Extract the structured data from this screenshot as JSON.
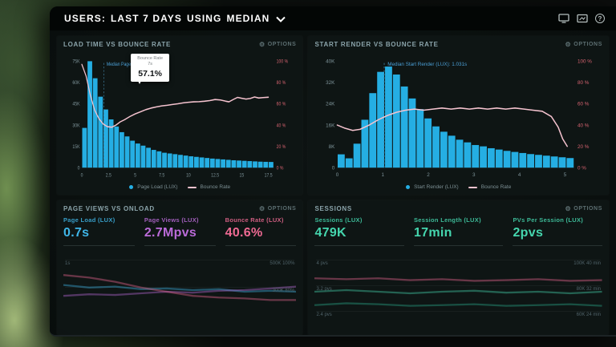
{
  "topbar": {
    "title": {
      "prefix": "USERS:",
      "range": "LAST 7 DAYS",
      "using": "USING",
      "metric": "MEDIAN"
    }
  },
  "labels": {
    "options": "OPTIONS"
  },
  "colors": {
    "bar_blue": "#25aee3",
    "line_pink": "#f5c3cf",
    "tick_left": "#7e949a",
    "tick_right": "#d4626f",
    "median_blue": "#4b9fd6",
    "teal": "#45d6ae",
    "purple": "#bb6bd9",
    "pink": "#ef6a93",
    "blue": "#3fb6e8"
  },
  "chart_data": [
    {
      "id": "load-time-vs-bounce-rate",
      "type": "bar",
      "title": "LOAD TIME VS BOUNCE RATE",
      "bar_series": "Page Load (LUX)",
      "line_series": "Bounce Rate",
      "bar_color": "#25aee3",
      "line_color": "#f5c3cf",
      "x_max": 18,
      "bin_width_s": 0.5,
      "y_left_max_k": 75,
      "bar_values_k": [
        28,
        75,
        63,
        50,
        41,
        34,
        29,
        25,
        22,
        19,
        17,
        15.5,
        14,
        12.5,
        11.5,
        10.5,
        10,
        9.5,
        9,
        8.5,
        8,
        7.6,
        7.2,
        6.8,
        6.4,
        6.1,
        5.8,
        5.5,
        5.2,
        5.0,
        4.8,
        4.6,
        4.4,
        4.2,
        4.1,
        4.0
      ],
      "line_points_pct": [
        [
          0,
          97
        ],
        [
          0.4,
          86
        ],
        [
          0.8,
          68
        ],
        [
          1.2,
          54
        ],
        [
          1.6,
          46
        ],
        [
          2,
          41
        ],
        [
          2.4,
          38.5
        ],
        [
          2.8,
          38
        ],
        [
          3.2,
          40
        ],
        [
          3.6,
          43
        ],
        [
          4,
          45
        ],
        [
          4.5,
          48
        ],
        [
          5,
          50.5
        ],
        [
          5.5,
          52.5
        ],
        [
          6,
          54.5
        ],
        [
          6.5,
          56
        ],
        [
          7,
          57.1
        ],
        [
          7.5,
          58
        ],
        [
          8,
          58.6
        ],
        [
          8.5,
          59.3
        ],
        [
          9,
          60
        ],
        [
          9.5,
          60.8
        ],
        [
          10,
          61.4
        ],
        [
          10.5,
          61.8
        ],
        [
          11,
          62
        ],
        [
          11.5,
          62.4
        ],
        [
          12,
          63
        ],
        [
          12.5,
          64
        ],
        [
          13,
          63.6
        ],
        [
          13.5,
          62.4
        ],
        [
          13.8,
          61.8
        ],
        [
          14.2,
          64
        ],
        [
          14.6,
          66
        ],
        [
          15,
          65.2
        ],
        [
          15.4,
          64.4
        ],
        [
          15.8,
          65
        ],
        [
          16.2,
          66.4
        ],
        [
          16.6,
          65.4
        ],
        [
          17,
          65.8
        ],
        [
          17.5,
          66.2
        ]
      ],
      "y_left_ticks": [
        "75K",
        "60K",
        "45K",
        "30K",
        "15K",
        "0"
      ],
      "y_right_ticks": [
        "100 %",
        "80 %",
        "60 %",
        "40 %",
        "20 %",
        "0 %"
      ],
      "x_ticks": [
        0,
        2.5,
        5,
        7.5,
        10,
        12.5,
        15,
        17.5
      ],
      "median_label": "Median Page Load (LUX): 2.058s",
      "median_x": 2.058,
      "tooltip": {
        "series": "Bounce Rate",
        "x_label": "7s",
        "value": "57.1%"
      },
      "legend": [
        {
          "label": "Page Load (LUX)"
        },
        {
          "label": "Bounce Rate"
        }
      ]
    },
    {
      "id": "start-render-vs-bounce-rate",
      "type": "bar",
      "title": "START RENDER VS BOUNCE RATE",
      "bar_series": "Start Render (LUX)",
      "line_series": "Bounce Rate",
      "bar_color": "#25aee3",
      "line_color": "#f5c3cf",
      "x_max": 5.2,
      "bin_width_s": 0.17,
      "y_left_max_k": 40,
      "bar_values_k": [
        5,
        3.5,
        9,
        18,
        28,
        36,
        38,
        35,
        30.5,
        26,
        22,
        18.5,
        15.5,
        13.5,
        12,
        10.5,
        9.5,
        8.5,
        8,
        7.3,
        6.8,
        6.3,
        5.9,
        5.5,
        5.1,
        4.8,
        4.5,
        4.2,
        3.9,
        3.6
      ],
      "line_points_pct": [
        [
          0,
          40
        ],
        [
          0.17,
          37
        ],
        [
          0.34,
          35
        ],
        [
          0.5,
          36
        ],
        [
          0.7,
          40
        ],
        [
          0.9,
          45
        ],
        [
          1.1,
          49
        ],
        [
          1.3,
          52
        ],
        [
          1.5,
          54
        ],
        [
          1.7,
          55
        ],
        [
          1.9,
          54
        ],
        [
          2.1,
          55
        ],
        [
          2.3,
          56
        ],
        [
          2.5,
          55
        ],
        [
          2.7,
          56
        ],
        [
          2.9,
          55
        ],
        [
          3.1,
          56
        ],
        [
          3.3,
          55
        ],
        [
          3.5,
          56
        ],
        [
          3.7,
          55
        ],
        [
          3.9,
          56
        ],
        [
          4.1,
          55
        ],
        [
          4.3,
          54
        ],
        [
          4.5,
          53
        ],
        [
          4.7,
          48
        ],
        [
          4.85,
          38
        ],
        [
          4.95,
          27
        ],
        [
          5.05,
          20
        ]
      ],
      "y_left_ticks": [
        "40K",
        "32K",
        "24K",
        "16K",
        "8K",
        "0"
      ],
      "y_right_ticks": [
        "100 %",
        "80 %",
        "60 %",
        "40 %",
        "20 %",
        "0 %"
      ],
      "x_ticks": [
        0,
        1,
        2,
        3,
        4,
        5
      ],
      "median_label": "Median Start Render (LUX): 1.031s",
      "median_x": 1.031,
      "legend": [
        {
          "label": "Start Render (LUX)"
        },
        {
          "label": "Bounce Rate"
        }
      ]
    },
    {
      "id": "page-views-vs-onload",
      "type": "table",
      "title": "PAGE VIEWS VS ONLOAD",
      "metrics": [
        {
          "label": "Page Load (LUX)",
          "value": "0.7s",
          "color": "#3fb6e8"
        },
        {
          "label": "Page Views (LUX)",
          "value": "2.7Mpvs",
          "color": "#bb6bd9"
        },
        {
          "label": "Bounce Rate (LUX)",
          "value": "40.6%",
          "color": "#ef6a93"
        }
      ],
      "grid_rows": [
        {
          "left": "1s",
          "right": "500K  100%"
        },
        {
          "left": "",
          "right": "300K  80%"
        }
      ],
      "sparks": [
        {
          "color": "#3fb6e8",
          "values": [
            0.42,
            0.45,
            0.44,
            0.47,
            0.46,
            0.48,
            0.47,
            0.5,
            0.49,
            0.5
          ]
        },
        {
          "color": "#bb6bd9",
          "values": [
            0.55,
            0.53,
            0.54,
            0.52,
            0.5,
            0.51,
            0.49,
            0.48,
            0.46,
            0.44
          ]
        },
        {
          "color": "#ef6a93",
          "values": [
            0.3,
            0.33,
            0.38,
            0.45,
            0.5,
            0.55,
            0.57,
            0.58,
            0.6,
            0.6
          ]
        }
      ]
    },
    {
      "id": "sessions",
      "type": "table",
      "title": "SESSIONS",
      "metrics": [
        {
          "label": "Sessions (LUX)",
          "value": "479K",
          "color": "#45d6ae"
        },
        {
          "label": "Session Length (LUX)",
          "value": "17min",
          "color": "#45d6ae"
        },
        {
          "label": "PVs Per Session (LUX)",
          "value": "2pvs",
          "color": "#45d6ae"
        }
      ],
      "grid_rows": [
        {
          "left": "4 pvs",
          "right": "100K  40 min"
        },
        {
          "left": "3.2 pvs",
          "right": "80K  32 min"
        },
        {
          "left": "2.4 pvs",
          "right": "60K  24 min"
        }
      ],
      "sparks": [
        {
          "color": "#45d6ae",
          "values": [
            0.5,
            0.48,
            0.5,
            0.52,
            0.5,
            0.49,
            0.51,
            0.5,
            0.52,
            0.5
          ]
        },
        {
          "color": "#2aa98a",
          "values": [
            0.66,
            0.64,
            0.65,
            0.67,
            0.66,
            0.65,
            0.67,
            0.66,
            0.65,
            0.67
          ]
        },
        {
          "color": "#ef6a93",
          "values": [
            0.34,
            0.35,
            0.34,
            0.36,
            0.35,
            0.37,
            0.36,
            0.35,
            0.37,
            0.36
          ]
        }
      ]
    }
  ]
}
